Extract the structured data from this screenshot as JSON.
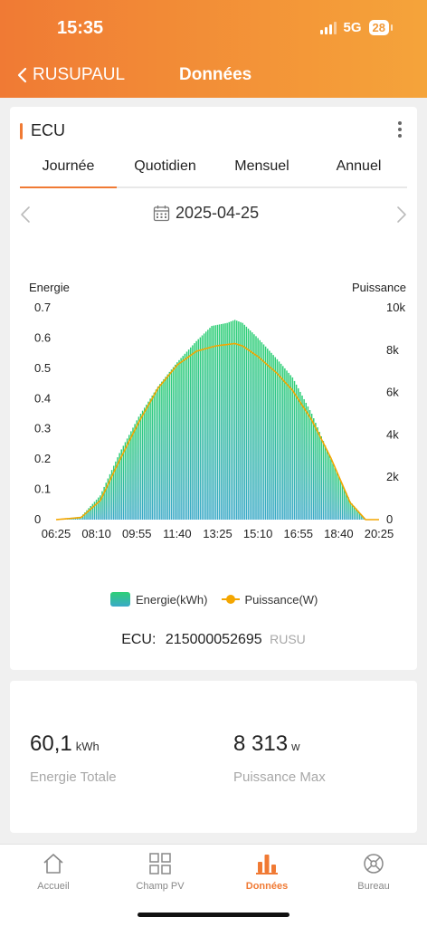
{
  "status": {
    "time": "15:35",
    "network": "5G",
    "battery": "28"
  },
  "nav": {
    "back_label": "RUSUPAUL",
    "title": "Données"
  },
  "device": {
    "title": "ECU"
  },
  "tabs": [
    {
      "label": "Journée",
      "active": true
    },
    {
      "label": "Quotidien",
      "active": false
    },
    {
      "label": "Mensuel",
      "active": false
    },
    {
      "label": "Annuel",
      "active": false
    }
  ],
  "date": {
    "value": "2025-04-25"
  },
  "chart_data": {
    "type": "bar",
    "left_axis_label": "Energie",
    "right_axis_label": "Puissance",
    "left_ticks": [
      "0",
      "0.1",
      "0.2",
      "0.3",
      "0.4",
      "0.5",
      "0.6",
      "0.7"
    ],
    "right_ticks": [
      "0",
      "2k",
      "4k",
      "6k",
      "8k",
      "10k"
    ],
    "x_ticks": [
      "06:25",
      "08:10",
      "09:55",
      "11:40",
      "13:25",
      "15:10",
      "16:55",
      "18:40",
      "20:25"
    ],
    "left_ylim": [
      0,
      0.7
    ],
    "right_ylim": [
      0,
      10000
    ],
    "x_range_minutes": [
      385,
      1225
    ],
    "series": [
      {
        "name": "Energie(kWh)",
        "axis": "left",
        "type": "bar",
        "points": [
          [
            385,
            0
          ],
          [
            450,
            0.01
          ],
          [
            500,
            0.08
          ],
          [
            550,
            0.22
          ],
          [
            600,
            0.34
          ],
          [
            650,
            0.44
          ],
          [
            700,
            0.52
          ],
          [
            750,
            0.59
          ],
          [
            790,
            0.64
          ],
          [
            830,
            0.65
          ],
          [
            850,
            0.66
          ],
          [
            870,
            0.65
          ],
          [
            910,
            0.6
          ],
          [
            960,
            0.53
          ],
          [
            1000,
            0.47
          ],
          [
            1050,
            0.35
          ],
          [
            1100,
            0.2
          ],
          [
            1150,
            0.06
          ],
          [
            1190,
            0
          ],
          [
            1225,
            0
          ]
        ]
      },
      {
        "name": "Puissance(W)",
        "axis": "right",
        "type": "line",
        "points": [
          [
            385,
            0
          ],
          [
            450,
            100
          ],
          [
            500,
            900
          ],
          [
            550,
            2800
          ],
          [
            600,
            4600
          ],
          [
            650,
            6200
          ],
          [
            700,
            7300
          ],
          [
            750,
            7950
          ],
          [
            800,
            8200
          ],
          [
            850,
            8313
          ],
          [
            870,
            8200
          ],
          [
            910,
            7700
          ],
          [
            960,
            6900
          ],
          [
            1000,
            6100
          ],
          [
            1050,
            4700
          ],
          [
            1100,
            2900
          ],
          [
            1150,
            800
          ],
          [
            1190,
            0
          ],
          [
            1225,
            0
          ]
        ]
      }
    ],
    "colors": {
      "bar_top": "#2ecf76",
      "bar_bottom": "#3aa9c8",
      "line": "#f4a600"
    },
    "legend_position": "bottom"
  },
  "ecu": {
    "label": "ECU:",
    "id": "215000052695",
    "owner": "RUSU"
  },
  "stats": [
    {
      "value": "60,1",
      "unit": "kWh",
      "label": "Energie Totale"
    },
    {
      "value": "8 313",
      "unit": "w",
      "label": "Puissance Max"
    }
  ],
  "tabbar": [
    {
      "label": "Accueil",
      "icon": "home-icon",
      "active": false
    },
    {
      "label": "Champ PV",
      "icon": "grid-icon",
      "active": false
    },
    {
      "label": "Données",
      "icon": "bar-chart-icon",
      "active": true
    },
    {
      "label": "Bureau",
      "icon": "bureau-icon",
      "active": false
    }
  ]
}
